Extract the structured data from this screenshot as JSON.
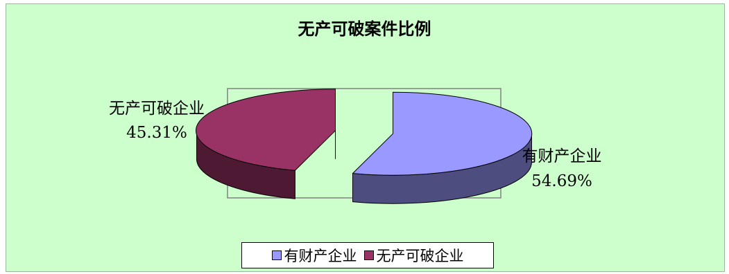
{
  "chart_data": {
    "type": "pie",
    "title": "无产可破案件比例",
    "slices": [
      {
        "name": "有财产企业",
        "value": 54.69,
        "label": "54.69%",
        "color": "#9999ff",
        "side_color": "#4d4d80"
      },
      {
        "name": "无产可破企业",
        "value": 45.31,
        "label": "45.31%",
        "color": "#993366",
        "side_color": "#4d1933"
      }
    ],
    "legend": {
      "placement": "bottom",
      "entries": [
        "有财产企业",
        "无产可破企业"
      ]
    },
    "style": "3d-exploded"
  }
}
